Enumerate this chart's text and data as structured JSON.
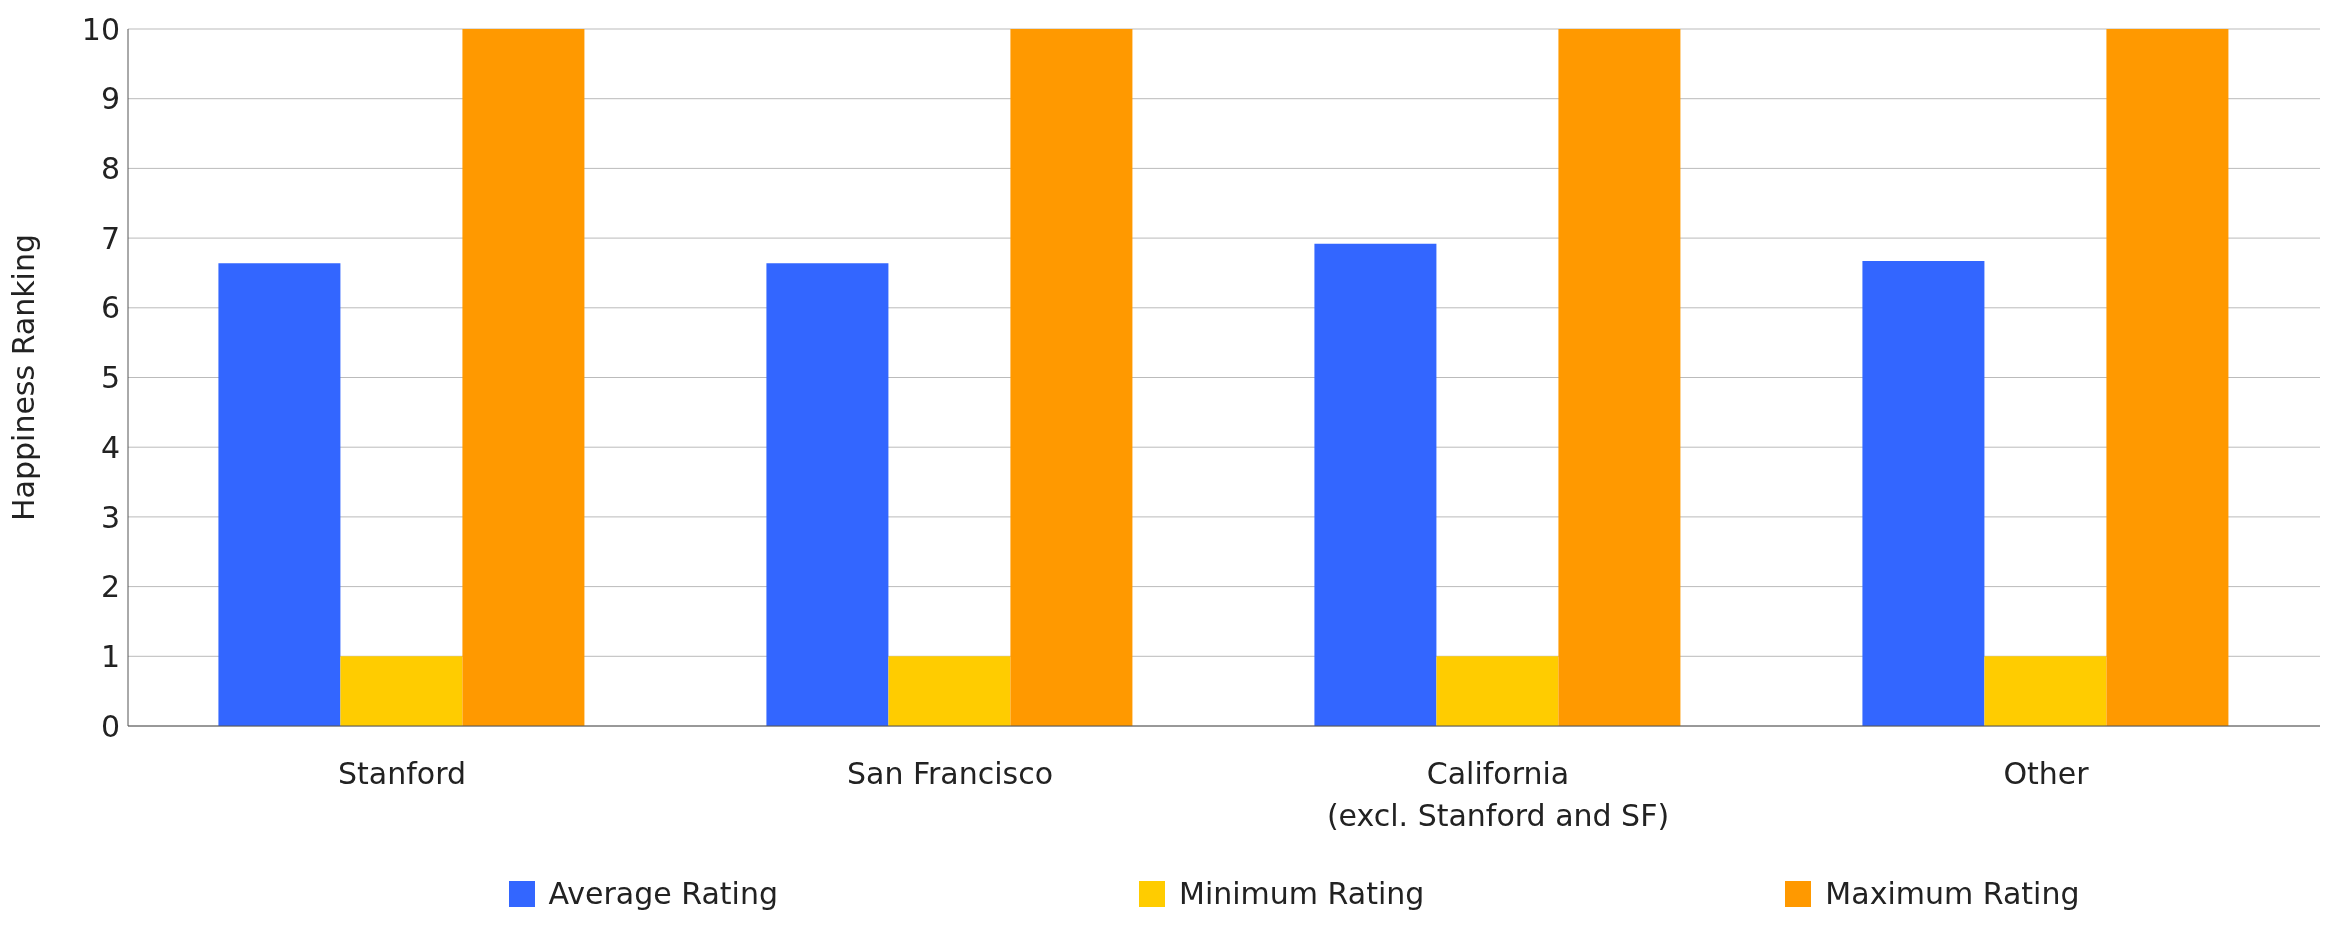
{
  "chart_data": {
    "type": "bar",
    "ylabel": "Happiness Ranking",
    "categories": [
      "Stanford",
      "San Francisco",
      "California\n(excl. Stanford and SF)",
      "Other"
    ],
    "series": [
      {
        "name": "Average Rating",
        "color": "#3366ff",
        "values": [
          6.64,
          6.64,
          6.92,
          6.67
        ]
      },
      {
        "name": "Minimum Rating",
        "color": "#ffcc00",
        "values": [
          1,
          1,
          1,
          1
        ]
      },
      {
        "name": "Maximum Rating",
        "color": "#ff9900",
        "values": [
          10,
          10,
          10,
          10
        ]
      }
    ],
    "ylim": [
      0,
      10
    ],
    "yticks": [
      0,
      1,
      2,
      3,
      4,
      5,
      6,
      7,
      8,
      9,
      10
    ],
    "grid": "y",
    "legend": "bottom"
  }
}
